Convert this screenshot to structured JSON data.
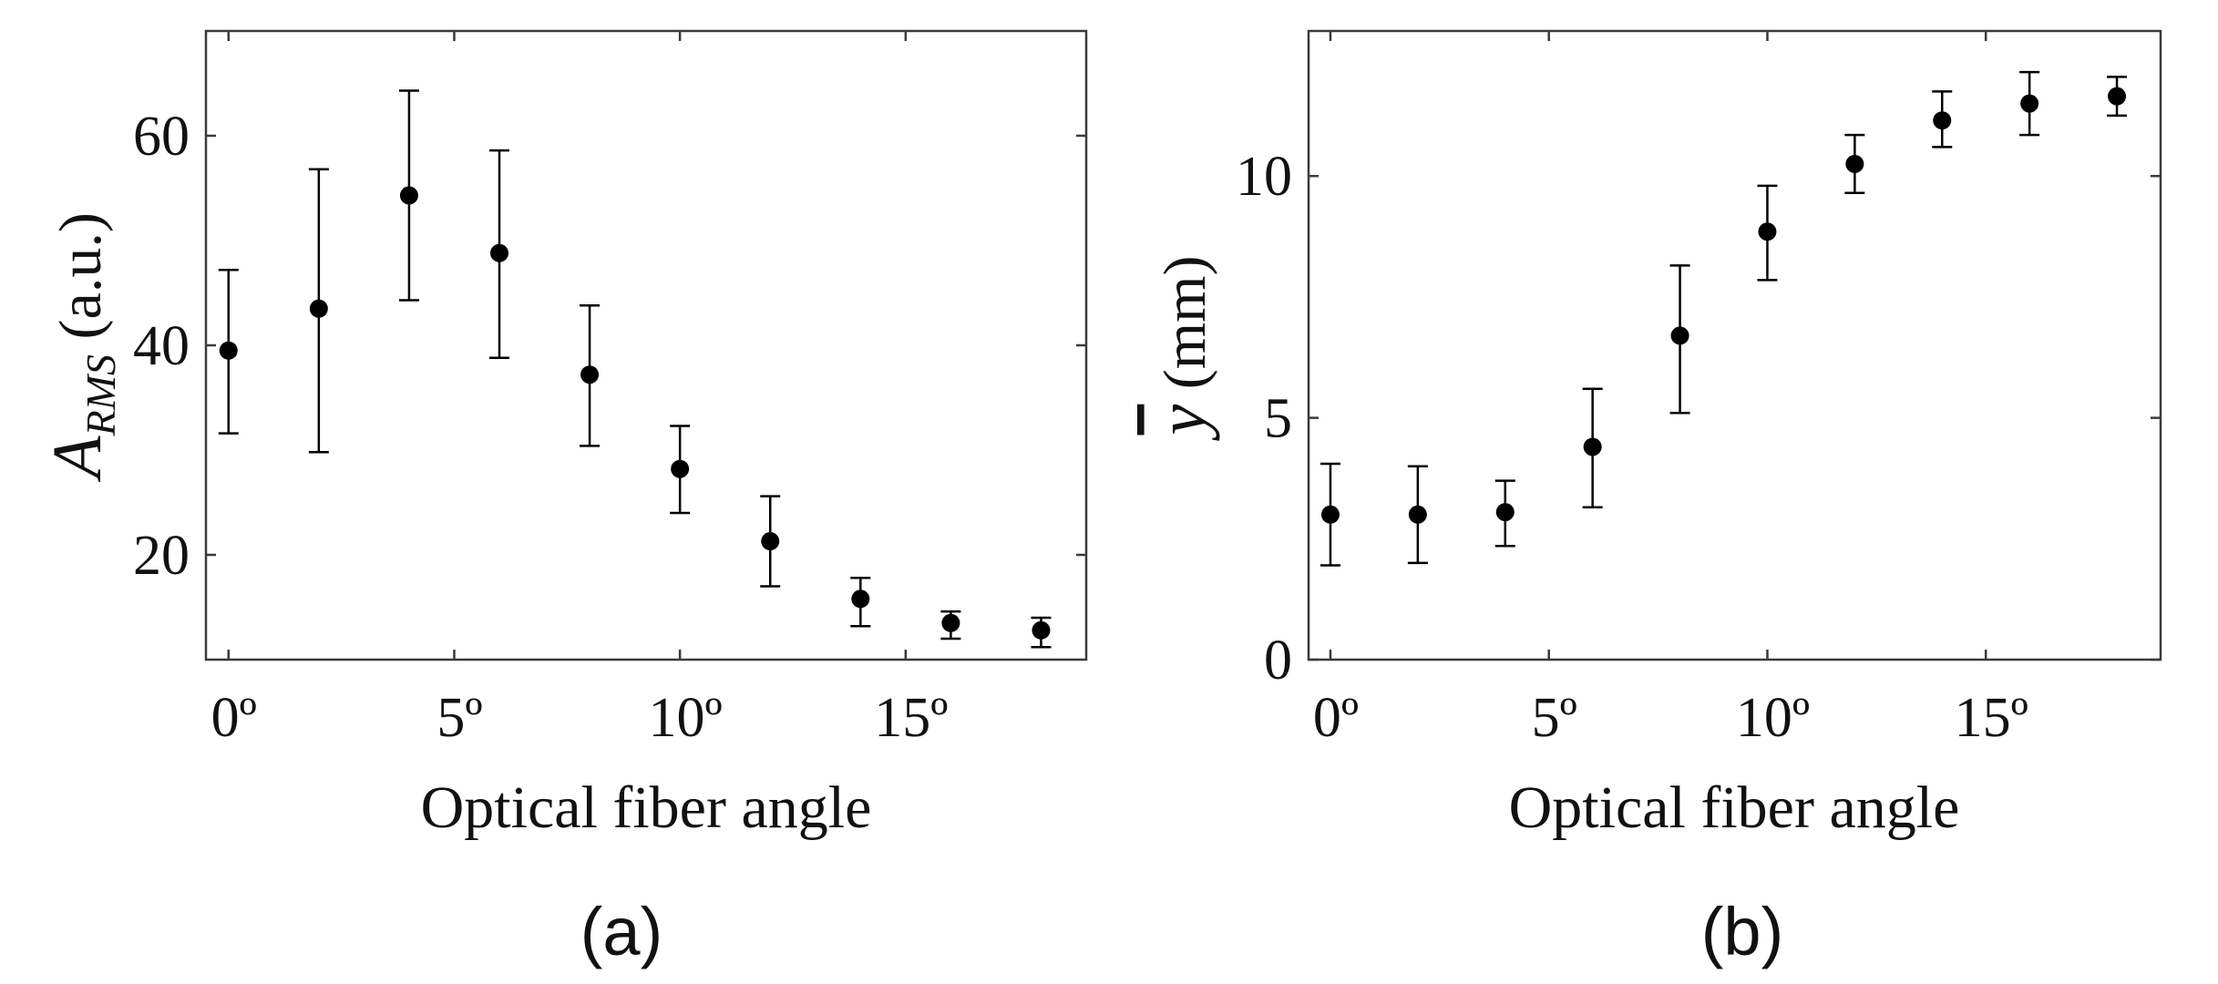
{
  "colors": {
    "marker": "#000000",
    "axis": "#3a3a3a",
    "text": "#111111"
  },
  "chart_data": [
    {
      "type": "scatter",
      "panel_label": "(a)",
      "xlabel": "Optical fiber angle",
      "ylabel": {
        "main": "A",
        "subscript": "RMS",
        "unit": "(a.u.)"
      },
      "xlim": [
        -0.5,
        19
      ],
      "ylim": [
        10,
        70
      ],
      "xticks": [
        0,
        5,
        10,
        15
      ],
      "xtick_labels": [
        "0º",
        "5º",
        "10º",
        "15º"
      ],
      "yticks": [
        20,
        40,
        60
      ],
      "ytick_labels": [
        "20",
        "40",
        "60"
      ],
      "series": [
        {
          "name": "A_RMS",
          "x": [
            0,
            2,
            4,
            6,
            8,
            10,
            12,
            14,
            16,
            18
          ],
          "y": [
            39.5,
            43.5,
            54.3,
            48.8,
            37.2,
            28.2,
            21.3,
            15.8,
            13.5,
            12.8
          ],
          "err_low": [
            31.6,
            29.8,
            44.3,
            38.8,
            30.4,
            24.0,
            17.0,
            13.2,
            12.0,
            11.2
          ],
          "err_high": [
            47.2,
            56.8,
            64.3,
            58.6,
            43.8,
            32.3,
            25.6,
            17.8,
            14.6,
            14.0
          ]
        }
      ]
    },
    {
      "type": "scatter",
      "panel_label": "(b)",
      "xlabel": "Optical fiber angle",
      "ylabel": {
        "main": "y",
        "overbar": true,
        "unit": "(mm)"
      },
      "xlim": [
        -0.5,
        19
      ],
      "ylim": [
        0,
        13
      ],
      "xticks": [
        0,
        5,
        10,
        15
      ],
      "xtick_labels": [
        "0º",
        "5º",
        "10º",
        "15º"
      ],
      "yticks": [
        0,
        5,
        10
      ],
      "ytick_labels": [
        "0",
        "5",
        "10"
      ],
      "series": [
        {
          "name": "y_bar",
          "x": [
            0,
            2,
            4,
            6,
            8,
            10,
            12,
            14,
            16,
            18
          ],
          "y": [
            3.0,
            3.0,
            3.05,
            4.4,
            6.7,
            8.85,
            10.25,
            11.15,
            11.5,
            11.65
          ],
          "err_low": [
            1.95,
            2.0,
            2.35,
            3.15,
            5.1,
            7.85,
            9.65,
            10.6,
            10.85,
            11.25
          ],
          "err_high": [
            4.05,
            4.0,
            3.7,
            5.6,
            8.15,
            9.8,
            10.85,
            11.75,
            12.15,
            12.05
          ]
        }
      ]
    }
  ]
}
